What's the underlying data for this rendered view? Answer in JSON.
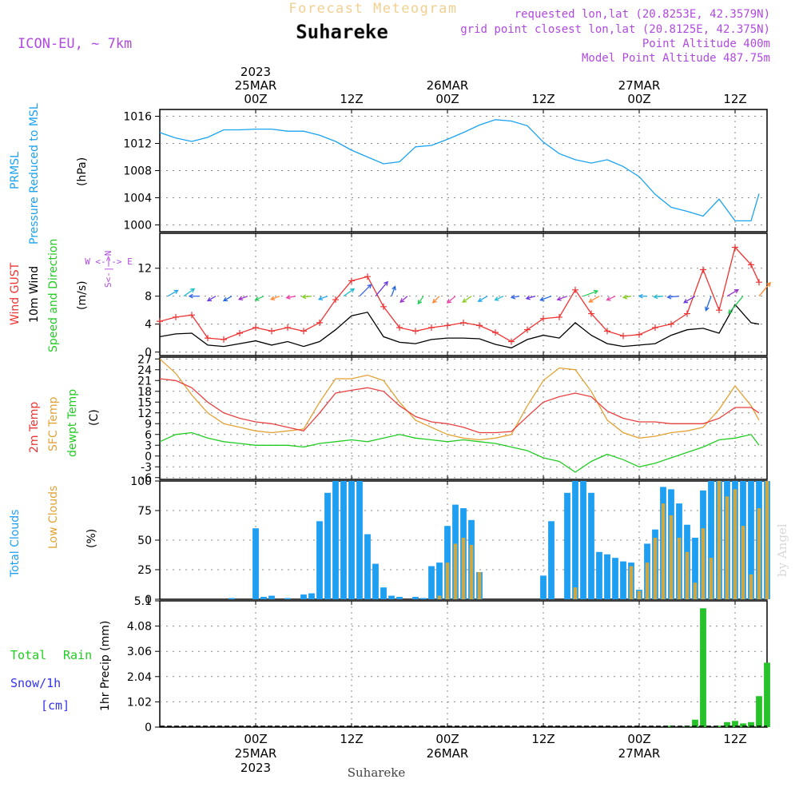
{
  "header": {
    "forecast_title": "Forecast Meteogram",
    "location": "Suhareke",
    "model": "ICON-EU, ~ 7km",
    "requested": "requested lon,lat (20.8253E, 42.3579N)",
    "grid_point": "grid point closest lon,lat (20.8125E, 42.375N)",
    "point_altitude": "Point Altitude 400m",
    "model_altitude": "Model Point Altitude 487.75m",
    "footer_location": "Suhareke",
    "watermark": "by Angel"
  },
  "time_axis": {
    "top": [
      {
        "hour": 0,
        "lines": [
          "2023",
          "25MAR",
          "00Z"
        ]
      },
      {
        "hour": 12,
        "lines": [
          "12Z"
        ]
      },
      {
        "hour": 24,
        "lines": [
          "26MAR",
          "00Z"
        ]
      },
      {
        "hour": 36,
        "lines": [
          "12Z"
        ]
      },
      {
        "hour": 48,
        "lines": [
          "27MAR",
          "00Z"
        ]
      },
      {
        "hour": 60,
        "lines": [
          "12Z"
        ]
      }
    ],
    "bottom": [
      {
        "hour": 0,
        "lines": [
          "00Z",
          "25MAR",
          "2023"
        ]
      },
      {
        "hour": 12,
        "lines": [
          "12Z"
        ]
      },
      {
        "hour": 24,
        "lines": [
          "00Z",
          "26MAR"
        ]
      },
      {
        "hour": 36,
        "lines": [
          "12Z"
        ]
      },
      {
        "hour": 48,
        "lines": [
          "00Z",
          "27MAR"
        ]
      },
      {
        "hour": 60,
        "lines": [
          "12Z"
        ]
      }
    ]
  },
  "labels": {
    "pressure": [
      "PRMSL",
      "Pressure Reduced to MSL",
      "(hPa)"
    ],
    "wind": [
      "Wind GUST",
      "10m Wind",
      "Speed and Direction",
      "(m/s)"
    ],
    "compass": "W <-|-> E",
    "compass_v": "S<-|->N",
    "temp": [
      "2m Temp",
      "SFC Temp",
      "dewpt Temp",
      "(C)"
    ],
    "clouds": [
      "Total Clouds",
      "Low Clouds",
      "(%)"
    ],
    "precip": [
      "Total",
      "Rain",
      "Snow/1h",
      "[cm]",
      "1hr Precip (mm)"
    ]
  },
  "colors": {
    "pressure": "#1aa3f0",
    "gust": "#ee3333",
    "wind": "#000000",
    "temp2m": "#e84040",
    "sfc": "#e3a234",
    "dewpt": "#22cc22",
    "total_clouds": "#1e9ff2",
    "low_clouds": "#c8a84a",
    "rain": "#27c22a",
    "snow": "#3333ee",
    "label_purple": "#b04adf",
    "title_gold": "#f0d090"
  },
  "chart_data": [
    {
      "type": "line",
      "name": "PRMSL",
      "ylabel": "(hPa)",
      "ylim": [
        999,
        1017
      ],
      "yticks": [
        1000,
        1004,
        1008,
        1012,
        1016
      ],
      "x_hours": [
        -12,
        -10,
        -8,
        -6,
        -4,
        -2,
        0,
        2,
        4,
        6,
        8,
        10,
        12,
        14,
        16,
        18,
        20,
        22,
        24,
        26,
        28,
        30,
        32,
        34,
        36,
        38,
        40,
        42,
        44,
        46,
        48,
        50,
        52,
        54,
        56,
        58,
        60,
        62,
        63
      ],
      "series": [
        {
          "values": [
            1013.6,
            1012.8,
            1012.3,
            1012.9,
            1014.0,
            1014.0,
            1014.1,
            1014.1,
            1013.8,
            1013.8,
            1013.2,
            1012.3,
            1011.0,
            1010.0,
            1009.0,
            1009.3,
            1011.5,
            1011.7,
            1012.6,
            1013.6,
            1014.7,
            1015.5,
            1015.3,
            1014.6,
            1012.2,
            1010.5,
            1009.6,
            1009.1,
            1009.6,
            1008.6,
            1007.1,
            1004.5,
            1002.6,
            1002.0,
            1001.3,
            1003.8,
            1000.6,
            1000.6,
            1004.6
          ]
        }
      ]
    },
    {
      "type": "line",
      "name": "Wind",
      "ylabel": "(m/s)",
      "ylim": [
        -0.5,
        17
      ],
      "yticks": [
        0,
        4,
        8,
        12
      ],
      "x_hours": [
        -12,
        -10,
        -8,
        -6,
        -4,
        -2,
        0,
        2,
        4,
        6,
        8,
        10,
        12,
        14,
        16,
        18,
        20,
        22,
        24,
        26,
        28,
        30,
        32,
        34,
        36,
        38,
        40,
        42,
        44,
        46,
        48,
        50,
        52,
        54,
        56,
        58,
        60,
        62,
        63
      ],
      "series": [
        {
          "name": "Wind GUST",
          "values": [
            4.4,
            5.0,
            5.3,
            2.0,
            1.8,
            2.7,
            3.5,
            3.0,
            3.5,
            3.0,
            4.2,
            7.5,
            10.2,
            10.8,
            6.5,
            3.5,
            3.0,
            3.5,
            3.8,
            4.2,
            3.8,
            2.8,
            1.5,
            3.2,
            4.8,
            5.0,
            8.9,
            5.5,
            3.0,
            2.3,
            2.5,
            3.5,
            4.0,
            5.5,
            11.8,
            6.0,
            15.0,
            12.5,
            10.0
          ]
        },
        {
          "name": "10m Wind",
          "values": [
            2.2,
            2.6,
            2.7,
            1.0,
            0.8,
            1.2,
            1.6,
            1.0,
            1.5,
            0.8,
            1.5,
            3.2,
            5.2,
            5.7,
            2.2,
            1.4,
            1.2,
            1.8,
            2.0,
            2.0,
            1.9,
            1.1,
            0.6,
            1.8,
            2.4,
            2.0,
            4.2,
            2.4,
            1.2,
            0.8,
            1.0,
            1.2,
            2.4,
            3.2,
            3.4,
            2.7,
            6.8,
            4.2,
            4.0
          ]
        }
      ],
      "barbs": {
        "x_hours": [
          -11,
          -9,
          -7,
          -5,
          -3,
          -1,
          1,
          3,
          5,
          7,
          9,
          11,
          13,
          15,
          17,
          19,
          21,
          23,
          25,
          27,
          29,
          31,
          33,
          35,
          37,
          39,
          41,
          43,
          45,
          47,
          49,
          51,
          53,
          55,
          57,
          59,
          61,
          63
        ],
        "direction_deg": [
          60,
          55,
          270,
          240,
          240,
          250,
          245,
          250,
          260,
          265,
          250,
          55,
          45,
          40,
          20,
          230,
          215,
          225,
          230,
          235,
          240,
          245,
          260,
          255,
          250,
          250,
          70,
          240,
          245,
          260,
          270,
          265,
          265,
          240,
          200,
          60,
          220,
          40
        ],
        "speed": [
          2.5,
          3.0,
          2.0,
          1.5,
          1.5,
          1.5,
          1.5,
          1.5,
          1.5,
          1.5,
          1.5,
          3.0,
          4.5,
          5.5,
          2.0,
          1.5,
          1.5,
          1.5,
          2.0,
          2.0,
          2.0,
          1.5,
          1.0,
          1.5,
          2.5,
          2.0,
          4.0,
          2.5,
          1.5,
          1.0,
          1.0,
          1.5,
          2.5,
          3.0,
          4.0,
          3.0,
          7.0,
          5.0
        ]
      }
    },
    {
      "type": "line",
      "name": "Temperature",
      "ylabel": "(C)",
      "ylim": [
        -6.5,
        27.5
      ],
      "yticks": [
        -6,
        -3,
        0,
        3,
        6,
        9,
        12,
        15,
        18,
        21,
        24,
        27
      ],
      "x_hours": [
        -12,
        -10,
        -8,
        -6,
        -4,
        -2,
        0,
        2,
        4,
        6,
        8,
        10,
        12,
        14,
        16,
        18,
        20,
        22,
        24,
        26,
        28,
        30,
        32,
        34,
        36,
        38,
        40,
        42,
        44,
        46,
        48,
        50,
        52,
        54,
        56,
        58,
        60,
        62,
        63
      ],
      "series": [
        {
          "name": "2m Temp",
          "values": [
            21.5,
            21.0,
            19.0,
            15.0,
            12.0,
            10.5,
            9.5,
            9.0,
            8.0,
            7.0,
            12.0,
            17.5,
            18.3,
            19.0,
            18.0,
            14.0,
            11.0,
            9.5,
            9.0,
            8.0,
            6.5,
            6.5,
            6.8,
            11.0,
            15.0,
            16.5,
            17.5,
            16.5,
            12.5,
            10.5,
            9.5,
            9.5,
            9.0,
            9.0,
            9.0,
            10.5,
            13.5,
            13.5,
            12.0
          ]
        },
        {
          "name": "SFC Temp",
          "values": [
            27.0,
            23.0,
            17.0,
            12.0,
            9.0,
            8.0,
            7.0,
            6.5,
            7.0,
            7.5,
            15.0,
            21.5,
            21.5,
            22.5,
            21.0,
            15.0,
            10.0,
            8.0,
            6.0,
            5.0,
            4.5,
            5.0,
            6.0,
            14.0,
            21.0,
            24.5,
            24.0,
            18.0,
            10.0,
            6.5,
            5.0,
            5.5,
            6.5,
            7.0,
            8.0,
            13.0,
            19.5,
            14.0,
            10.0
          ]
        },
        {
          "name": "dewpt Temp",
          "values": [
            4.0,
            6.0,
            6.5,
            5.0,
            4.0,
            3.5,
            3.0,
            3.0,
            3.0,
            2.5,
            3.5,
            4.0,
            4.5,
            4.0,
            5.0,
            6.0,
            5.0,
            4.5,
            4.0,
            4.5,
            4.0,
            3.5,
            2.5,
            1.5,
            -0.5,
            -1.5,
            -4.5,
            -1.5,
            0.5,
            -1.0,
            -3.0,
            -2.0,
            -0.5,
            1.0,
            2.5,
            4.5,
            5.0,
            6.0,
            3.0
          ]
        }
      ]
    },
    {
      "type": "bar",
      "name": "Clouds",
      "ylabel": "(%)",
      "ylim": [
        0,
        100
      ],
      "yticks": [
        0,
        25,
        50,
        75,
        100
      ],
      "x_hours": [
        -12,
        -11,
        -10,
        -9,
        -8,
        -7,
        -6,
        -5,
        -4,
        -3,
        -2,
        -1,
        0,
        1,
        2,
        3,
        4,
        5,
        6,
        7,
        8,
        9,
        10,
        11,
        12,
        13,
        14,
        15,
        16,
        17,
        18,
        19,
        20,
        21,
        22,
        23,
        24,
        25,
        26,
        27,
        28,
        29,
        30,
        31,
        32,
        33,
        34,
        35,
        36,
        37,
        38,
        39,
        40,
        41,
        42,
        43,
        44,
        45,
        46,
        47,
        48,
        49,
        50,
        51,
        52,
        53,
        54,
        55,
        56,
        57,
        58,
        59,
        60,
        61,
        62,
        63,
        64
      ],
      "series": [
        {
          "name": "Total Clouds",
          "values": [
            0,
            0,
            0,
            0,
            0,
            0,
            0,
            0,
            0,
            1,
            0,
            0,
            60,
            2,
            3,
            0,
            1,
            0,
            4,
            5,
            66,
            90,
            100,
            100,
            100,
            100,
            55,
            30,
            10,
            3,
            2,
            0,
            2,
            1,
            28,
            31,
            62,
            80,
            77,
            67,
            23,
            0,
            0,
            0,
            0,
            0,
            0,
            0,
            20,
            66,
            0,
            90,
            100,
            100,
            90,
            40,
            38,
            35,
            32,
            31,
            8,
            47,
            59,
            95,
            93,
            81,
            63,
            52,
            92,
            100,
            100,
            100,
            100,
            100,
            100,
            100,
            100
          ]
        },
        {
          "name": "Low Clouds",
          "values": [
            0,
            0,
            0,
            0,
            0,
            0,
            0,
            0,
            0,
            0,
            0,
            0,
            0,
            0,
            0,
            0,
            0,
            0,
            0,
            0,
            0,
            0,
            0,
            0,
            0,
            0,
            0,
            0,
            0,
            0,
            0,
            0,
            0,
            0,
            0,
            3,
            31,
            47,
            52,
            46,
            23,
            0,
            0,
            0,
            0,
            0,
            0,
            0,
            0,
            0,
            0,
            0,
            10,
            0,
            0,
            0,
            0,
            0,
            0,
            28,
            7,
            31,
            52,
            81,
            71,
            52,
            40,
            14,
            60,
            35,
            100,
            87,
            93,
            62,
            21,
            77,
            100
          ]
        }
      ]
    },
    {
      "type": "bar",
      "name": "Precipitation",
      "ylabel": "1hr Precip (mm)",
      "ylim": [
        0,
        5.1
      ],
      "yticks": [
        0,
        1.02,
        2.04,
        3.06,
        4.08,
        5.1
      ],
      "ytick_labels": [
        "0",
        "1.02",
        "2.04",
        "3.06",
        "4.08",
        "5.1"
      ],
      "x_hours": [
        52,
        54,
        55,
        56,
        58,
        59,
        60,
        61,
        62,
        63,
        64
      ],
      "series": [
        {
          "name": "Total Rain",
          "values": [
            0.05,
            0.05,
            0.3,
            4.8,
            0.05,
            0.2,
            0.25,
            0.15,
            0.2,
            1.25,
            2.6
          ]
        },
        {
          "name": "Snow/1h",
          "values": [
            0,
            0,
            0,
            0,
            0,
            0,
            0,
            0,
            0,
            0,
            0
          ]
        }
      ]
    }
  ]
}
